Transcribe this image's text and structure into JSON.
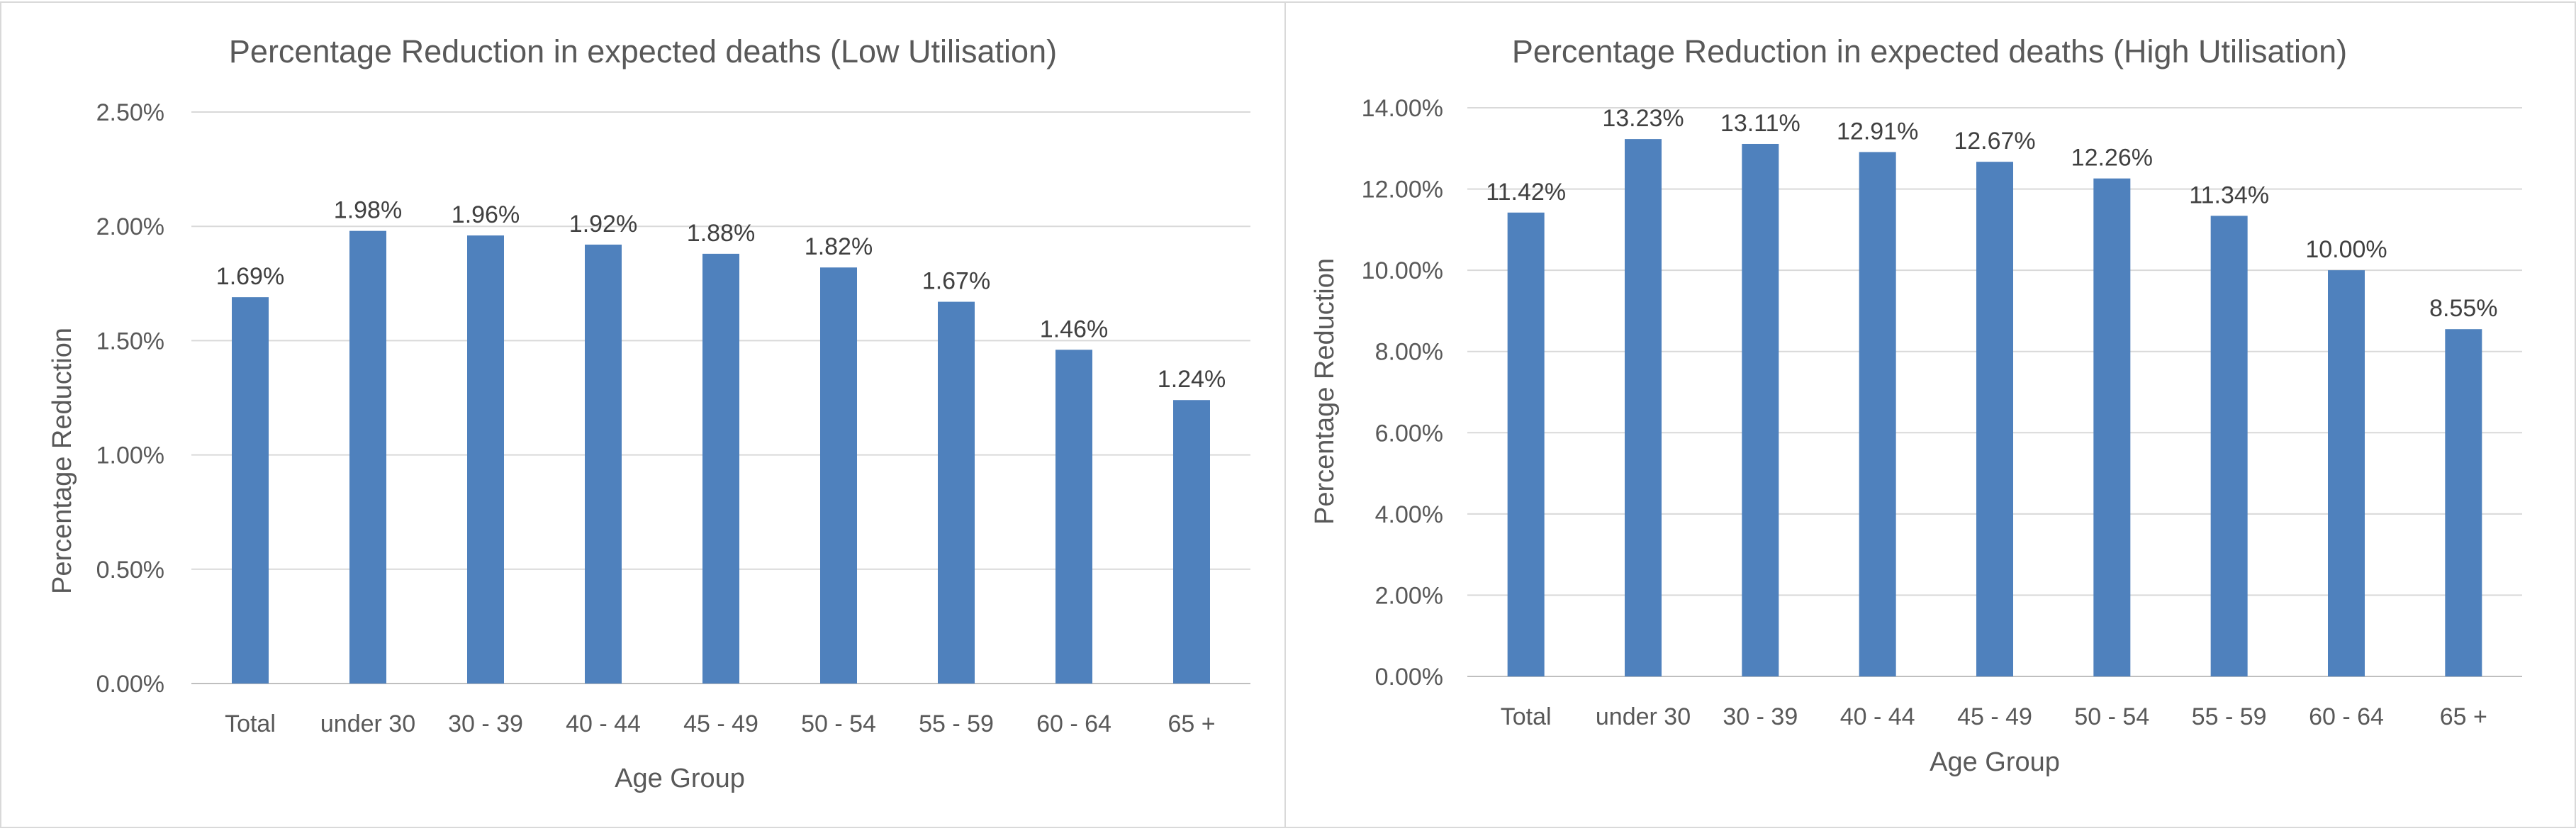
{
  "chart_data": [
    {
      "type": "bar",
      "title": "Percentage Reduction in expected deaths (Low Utilisation)",
      "xlabel": "Age Group",
      "ylabel": "Percentage Reduction",
      "categories": [
        "Total",
        "under 30",
        "30 - 39",
        "40 - 44",
        "45 - 49",
        "50 - 54",
        "55 - 59",
        "60 - 64",
        "65 +"
      ],
      "values": [
        1.69,
        1.98,
        1.96,
        1.92,
        1.88,
        1.82,
        1.67,
        1.46,
        1.24
      ],
      "value_labels": [
        "1.69%",
        "1.98%",
        "1.96%",
        "1.92%",
        "1.88%",
        "1.82%",
        "1.67%",
        "1.46%",
        "1.24%"
      ],
      "ylim": [
        0,
        2.5
      ],
      "yticks": [
        0,
        0.5,
        1.0,
        1.5,
        2.0,
        2.5
      ],
      "ytick_labels": [
        "0.00%",
        "0.50%",
        "1.00%",
        "1.50%",
        "2.00%",
        "2.50%"
      ],
      "grid": true,
      "legend": "none",
      "bar_color": "#4f81bd"
    },
    {
      "type": "bar",
      "title": "Percentage Reduction in expected deaths (High Utilisation)",
      "xlabel": "Age Group",
      "ylabel": "Percentage Reduction",
      "categories": [
        "Total",
        "under 30",
        "30 - 39",
        "40 - 44",
        "45 - 49",
        "50 - 54",
        "55 - 59",
        "60 - 64",
        "65 +"
      ],
      "values": [
        11.42,
        13.23,
        13.11,
        12.91,
        12.67,
        12.26,
        11.34,
        10.0,
        8.55
      ],
      "value_labels": [
        "11.42%",
        "13.23%",
        "13.11%",
        "12.91%",
        "12.67%",
        "12.26%",
        "11.34%",
        "10.00%",
        "8.55%"
      ],
      "ylim": [
        0,
        14
      ],
      "yticks": [
        0,
        2,
        4,
        6,
        8,
        10,
        12,
        14
      ],
      "ytick_labels": [
        "0.00%",
        "2.00%",
        "4.00%",
        "6.00%",
        "8.00%",
        "10.00%",
        "12.00%",
        "14.00%"
      ],
      "grid": true,
      "legend": "none",
      "bar_color": "#4f81bd"
    }
  ]
}
